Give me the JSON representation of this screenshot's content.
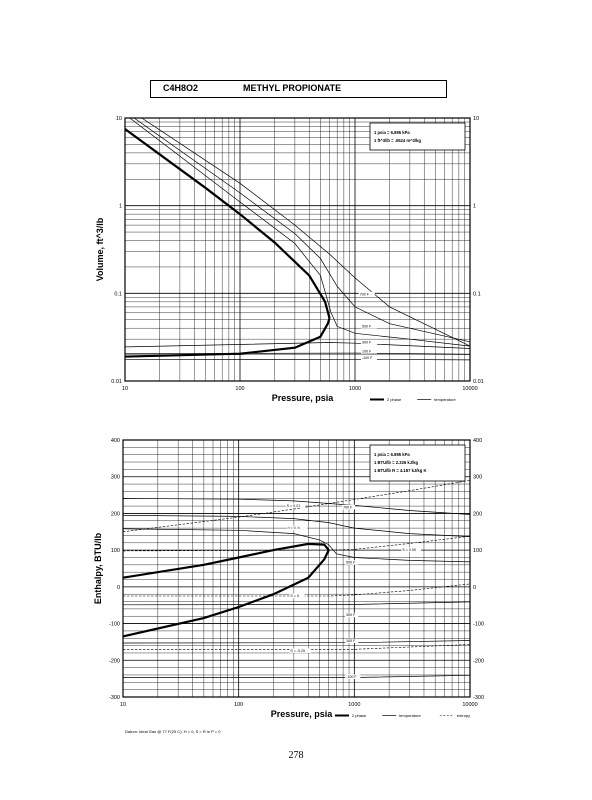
{
  "header": {
    "formula": "C4H8O2",
    "name": "METHYL PROPIONATE"
  },
  "page_number": "278",
  "datum_note": "Datum: Ideal Gas @ 77 F(25 C), H = 0, S = R ln P = 0",
  "chart_data": [
    {
      "type": "line",
      "xscale": "log",
      "yscale": "log",
      "xlim": [
        10,
        10000
      ],
      "ylim": [
        0.01,
        10
      ],
      "xlabel": "Pressure,  psia",
      "ylabel": "Volume, ft^3/lb",
      "x_ticks": [
        "10",
        "100",
        "1000",
        "10000"
      ],
      "y_ticks": [
        "0.01",
        "0.1",
        "1",
        "10"
      ],
      "y_ticks_right": [
        "0.01",
        "0.1",
        "1",
        "10"
      ],
      "conversion_box": [
        "1 psia = 6.895 kPa",
        "1 ft^3/lb = .0624 m^3/kg"
      ],
      "legend": [
        "2 phase",
        "temperature"
      ],
      "series": [
        {
          "style": "2phase",
          "points": [
            [
              10,
              7.5
            ],
            [
              50,
              1.6
            ],
            [
              100,
              0.8
            ],
            [
              200,
              0.38
            ],
            [
              400,
              0.16
            ],
            [
              550,
              0.08
            ],
            [
              600,
              0.052
            ]
          ]
        },
        {
          "style": "2phase",
          "points": [
            [
              10,
              0.019
            ],
            [
              100,
              0.0205
            ],
            [
              300,
              0.024
            ],
            [
              500,
              0.032
            ],
            [
              580,
              0.045
            ],
            [
              600,
              0.052
            ]
          ]
        },
        {
          "style": "temperature",
          "label": "700 F",
          "points": [
            [
              14,
              10
            ],
            [
              100,
              1.8
            ],
            [
              300,
              0.6
            ],
            [
              600,
              0.28
            ],
            [
              1000,
              0.15
            ],
            [
              2000,
              0.07
            ],
            [
              10000,
              0.025
            ]
          ]
        },
        {
          "style": "temperature",
          "label": "",
          "points": [
            [
              12,
              10
            ],
            [
              100,
              1.4
            ],
            [
              300,
              0.48
            ],
            [
              500,
              0.25
            ],
            [
              700,
              0.12
            ],
            [
              1000,
              0.07
            ],
            [
              2000,
              0.045
            ],
            [
              10000,
              0.028
            ]
          ]
        },
        {
          "style": "temperature",
          "label": "500 F",
          "points": [
            [
              11,
              10
            ],
            [
              100,
              1.1
            ],
            [
              300,
              0.37
            ],
            [
              500,
              0.16
            ],
            [
              620,
              0.06
            ],
            [
              700,
              0.042
            ],
            [
              1000,
              0.035
            ],
            [
              3000,
              0.03
            ],
            [
              10000,
              0.025
            ]
          ]
        },
        {
          "style": "temperature",
          "label": "300 F",
          "points": [
            [
              10,
              0.0245
            ],
            [
              600,
              0.0275
            ],
            [
              1000,
              0.027
            ],
            [
              10000,
              0.0235
            ]
          ]
        },
        {
          "style": "temperature",
          "label": "100 F",
          "points": [
            [
              10,
              0.0205
            ],
            [
              1000,
              0.0208
            ],
            [
              10000,
              0.0202
            ]
          ]
        },
        {
          "style": "temperature",
          "label": "-100 F",
          "points": [
            [
              10,
              0.0175
            ],
            [
              1000,
              0.0177
            ],
            [
              10000,
              0.0174
            ]
          ]
        }
      ]
    },
    {
      "type": "line",
      "xscale": "log",
      "xlim": [
        10,
        10000
      ],
      "ylim": [
        -300,
        400
      ],
      "xlabel": "Pressure,  psia",
      "ylabel": "Enthalpy, BTU/lb",
      "x_ticks": [
        "10",
        "100",
        "1000",
        "10000"
      ],
      "y_ticks": [
        "-300",
        "-200",
        "-100",
        "0",
        "100",
        "200",
        "300",
        "400"
      ],
      "conversion_box": [
        "1 psia = 6.895 kPa",
        "1 BTU/lb = 2.326 kJ/kg",
        "1 BTU/lb R = 4.187 kJ/kg K"
      ],
      "legend": [
        "2 phase",
        "temperature",
        "entropy"
      ],
      "series": [
        {
          "style": "2phase",
          "points": [
            [
              10,
              25
            ],
            [
              50,
              60
            ],
            [
              100,
              80
            ],
            [
              200,
              100
            ],
            [
              400,
              117
            ],
            [
              550,
              115
            ],
            [
              600,
              100
            ]
          ]
        },
        {
          "style": "2phase",
          "points": [
            [
              10,
              -135
            ],
            [
              50,
              -85
            ],
            [
              100,
              -55
            ],
            [
              200,
              -20
            ],
            [
              400,
              25
            ],
            [
              550,
              75
            ],
            [
              600,
              100
            ]
          ]
        },
        {
          "style": "temperature",
          "label": "700 F",
          "points": [
            [
              10,
              241
            ],
            [
              100,
              239
            ],
            [
              300,
              234
            ],
            [
              1000,
              222
            ],
            [
              3000,
              208
            ],
            [
              10000,
              197
            ]
          ]
        },
        {
          "style": "temperature",
          "label": "",
          "points": [
            [
              10,
              195
            ],
            [
              100,
              192
            ],
            [
              300,
              186
            ],
            [
              600,
              175
            ],
            [
              1000,
              160
            ],
            [
              3000,
              145
            ],
            [
              10000,
              137
            ]
          ]
        },
        {
          "style": "temperature",
          "label": "500 F",
          "points": [
            [
              10,
              158
            ],
            [
              100,
              154
            ],
            [
              300,
              145
            ],
            [
              500,
              128
            ],
            [
              600,
              115
            ],
            [
              700,
              90
            ],
            [
              1000,
              80
            ],
            [
              3000,
              72
            ],
            [
              10000,
              68
            ]
          ]
        },
        {
          "style": "temperature",
          "label": "300 F",
          "points": [
            [
              10,
              -49
            ],
            [
              1000,
              -48
            ],
            [
              10000,
              -41
            ]
          ]
        },
        {
          "style": "temperature",
          "label": "100 F",
          "points": [
            [
              10,
              -153
            ],
            [
              1000,
              -152
            ],
            [
              10000,
              -146
            ]
          ]
        },
        {
          "style": "temperature",
          "label": "-100 F",
          "points": [
            [
              10,
              -247
            ],
            [
              1000,
              -247
            ],
            [
              10000,
              -241
            ]
          ]
        },
        {
          "style": "entropy",
          "label": "S = 0.21",
          "points": [
            [
              10,
              150
            ],
            [
              100,
              190
            ],
            [
              300,
              212
            ],
            [
              1000,
              238
            ],
            [
              3000,
              262
            ],
            [
              10000,
              290
            ]
          ]
        },
        {
          "style": "entropy",
          "label": "S = 0.09",
          "points": [
            [
              10,
              98
            ],
            [
              100,
              99
            ],
            [
              600,
              100
            ],
            [
              1000,
              102
            ],
            [
              3000,
              118
            ],
            [
              10000,
              138
            ]
          ]
        },
        {
          "style": "entropy",
          "label": "S = 0.",
          "points": [
            [
              10,
              -25
            ],
            [
              600,
              -25
            ],
            [
              1000,
              -22
            ],
            [
              3000,
              -10
            ],
            [
              10000,
              8
            ]
          ]
        },
        {
          "style": "entropy",
          "label": "S = -0.25",
          "points": [
            [
              10,
              -170
            ],
            [
              1000,
              -170
            ],
            [
              10000,
              -157
            ]
          ]
        }
      ],
      "point_labels": [
        {
          "text": "S = 0.21",
          "x": 260,
          "y": 218
        },
        {
          "text": "700 F",
          "x": 800,
          "y": 214
        },
        {
          "text": "t = 0. h",
          "x": 270,
          "y": 157
        },
        {
          "text": "S = 0.09",
          "x": 2600,
          "y": 98
        },
        {
          "text": "500 F",
          "x": 850,
          "y": 63
        },
        {
          "text": "S = 0.",
          "x": 280,
          "y": -28
        },
        {
          "text": "300 F",
          "x": 850,
          "y": -80
        },
        {
          "text": "100 F",
          "x": 850,
          "y": -150
        },
        {
          "text": "S = -0.25",
          "x": 280,
          "y": -177
        },
        {
          "text": "-100 F",
          "x": 850,
          "y": -248
        }
      ]
    }
  ]
}
